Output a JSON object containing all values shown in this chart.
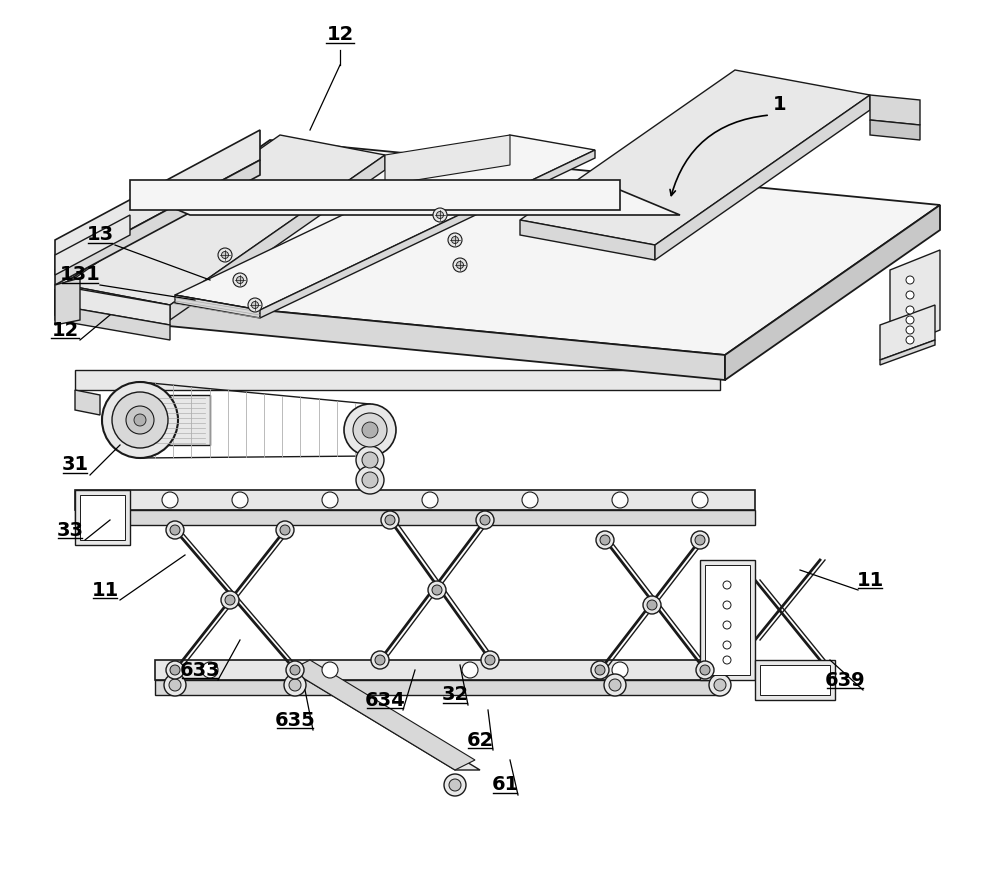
{
  "bg_color": "#ffffff",
  "lc": "#1a1a1a",
  "figsize": [
    10.0,
    8.77
  ],
  "dpi": 100,
  "gray1": "#f5f5f5",
  "gray2": "#e8e8e8",
  "gray3": "#d8d8d8",
  "gray4": "#c8c8c8",
  "gray5": "#b0b0b0",
  "gray6": "#909090",
  "gray7": "#707070"
}
